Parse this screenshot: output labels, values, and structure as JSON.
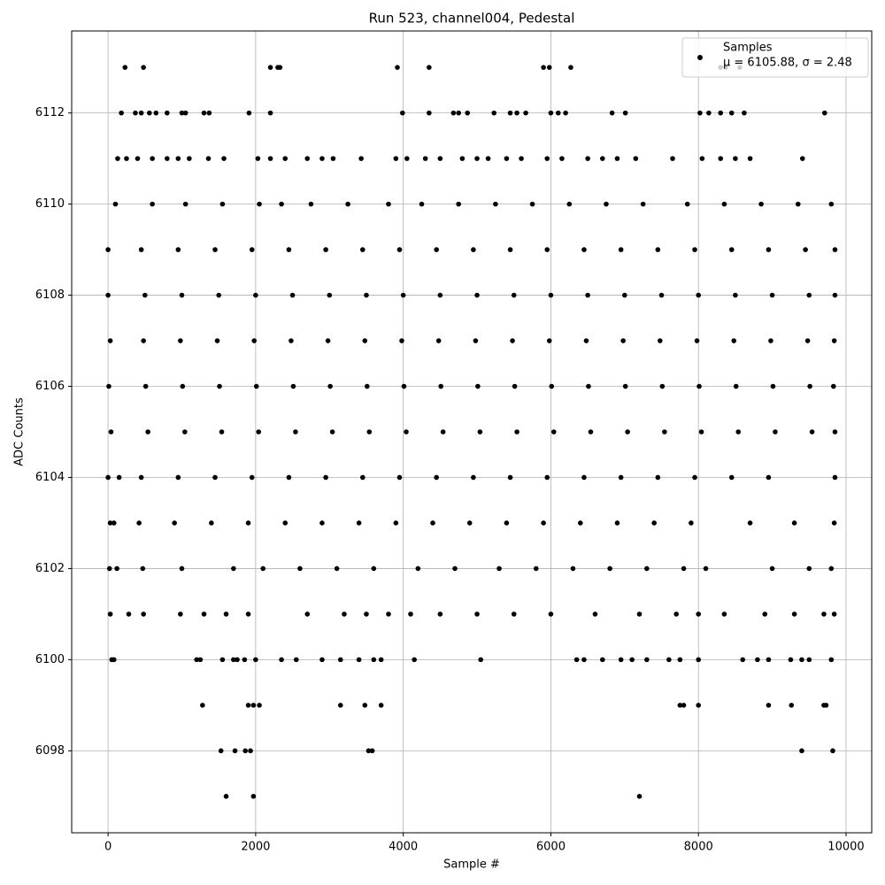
{
  "chart_data": {
    "type": "scatter",
    "title": "Run 523, channel004, Pedestal",
    "x_label": "Sample #",
    "y_label": "ADC Counts",
    "xlim": [
      -493,
      10348
    ],
    "ylim": [
      6096.2,
      6113.8
    ],
    "xticks": [
      0,
      2000,
      4000,
      6000,
      8000,
      10000
    ],
    "yticks": [
      6098,
      6100,
      6102,
      6104,
      6106,
      6108,
      6110,
      6112
    ],
    "grid": true,
    "legend_position": "upper right",
    "legend_stats": "μ = 6105.88, σ = 2.48",
    "series": [
      {
        "name": "Samples",
        "color": "#000000",
        "x": [
          230,
          480,
          2200,
          2300,
          2330,
          3920,
          4350,
          5900,
          5980,
          6270,
          8300,
          8370,
          8560,
          180,
          370,
          450,
          560,
          650,
          800,
          1000,
          1050,
          1300,
          1370,
          1910,
          2200,
          3990,
          4350,
          4680,
          4750,
          4870,
          5230,
          5450,
          5540,
          5660,
          6000,
          6100,
          6200,
          6830,
          7010,
          8020,
          8140,
          8300,
          8450,
          8620,
          9710,
          130,
          250,
          400,
          600,
          800,
          950,
          1100,
          1360,
          1570,
          2030,
          2200,
          2400,
          2700,
          2900,
          3050,
          3430,
          3900,
          4050,
          4300,
          4500,
          4800,
          5000,
          5150,
          5400,
          5600,
          5950,
          6150,
          6500,
          6700,
          6900,
          7150,
          7650,
          8050,
          8300,
          8500,
          8700,
          9410,
          100,
          600,
          1050,
          1550,
          2050,
          2350,
          2750,
          3250,
          3800,
          4250,
          4750,
          5250,
          5750,
          6250,
          6750,
          7250,
          7850,
          8350,
          8850,
          9350,
          9800,
          0,
          450,
          950,
          1450,
          1950,
          2450,
          2950,
          3450,
          3950,
          4450,
          4950,
          5450,
          5950,
          6450,
          6950,
          7450,
          7950,
          8450,
          8950,
          9450,
          9850,
          0,
          500,
          1000,
          1500,
          2000,
          2500,
          3000,
          3500,
          4000,
          4500,
          5000,
          5500,
          6000,
          6500,
          7000,
          7500,
          8000,
          8500,
          9000,
          9500,
          9850,
          30,
          480,
          980,
          1480,
          1980,
          2480,
          2980,
          3480,
          3980,
          4480,
          4980,
          5480,
          5980,
          6480,
          6980,
          7480,
          7980,
          8480,
          8980,
          9480,
          9840,
          10,
          510,
          1010,
          1510,
          2010,
          2510,
          3010,
          3510,
          4010,
          4510,
          5010,
          5510,
          6010,
          6510,
          7010,
          7510,
          8010,
          8510,
          9010,
          9510,
          9830,
          40,
          540,
          1040,
          1540,
          2040,
          2540,
          3040,
          3540,
          4040,
          4540,
          5040,
          5540,
          6040,
          6540,
          7040,
          7540,
          8040,
          8540,
          9040,
          9540,
          9850,
          0,
          150,
          450,
          950,
          1450,
          1950,
          2450,
          2950,
          3450,
          3950,
          4450,
          4950,
          5450,
          5950,
          6450,
          6950,
          7450,
          7950,
          8450,
          8950,
          9850,
          30,
          80,
          420,
          900,
          1400,
          1900,
          2400,
          2900,
          3400,
          3900,
          4400,
          4900,
          5400,
          5900,
          6400,
          6900,
          7400,
          7900,
          8700,
          9300,
          9840,
          20,
          120,
          470,
          1000,
          1700,
          2100,
          2600,
          3100,
          3600,
          4200,
          4700,
          5300,
          5800,
          6300,
          6800,
          7300,
          7800,
          8100,
          9000,
          9500,
          9800,
          30,
          280,
          480,
          980,
          1300,
          1600,
          1900,
          2700,
          3200,
          3500,
          3800,
          4100,
          4500,
          5000,
          5500,
          6000,
          6600,
          7200,
          7700,
          8000,
          8350,
          8900,
          9300,
          9700,
          9840,
          50,
          80,
          1200,
          1250,
          1550,
          1700,
          1750,
          1850,
          2000,
          2350,
          2550,
          2900,
          3150,
          3400,
          3600,
          3700,
          4150,
          5050,
          6350,
          6450,
          6700,
          6950,
          7100,
          7300,
          7600,
          7750,
          8000,
          8600,
          8800,
          8950,
          9250,
          9400,
          9500,
          9800,
          1280,
          1900,
          1970,
          2050,
          3150,
          3480,
          3700,
          7750,
          7800,
          8000,
          8950,
          9260,
          9700,
          9730,
          1530,
          1720,
          1860,
          1930,
          3530,
          3580,
          9400,
          9820,
          1600,
          1970,
          7200
        ],
        "values": [
          6113,
          6113,
          6113,
          6113,
          6113,
          6113,
          6113,
          6113,
          6113,
          6113,
          6113,
          6113,
          6113,
          6112,
          6112,
          6112,
          6112,
          6112,
          6112,
          6112,
          6112,
          6112,
          6112,
          6112,
          6112,
          6112,
          6112,
          6112,
          6112,
          6112,
          6112,
          6112,
          6112,
          6112,
          6112,
          6112,
          6112,
          6112,
          6112,
          6112,
          6112,
          6112,
          6112,
          6112,
          6112,
          6111,
          6111,
          6111,
          6111,
          6111,
          6111,
          6111,
          6111,
          6111,
          6111,
          6111,
          6111,
          6111,
          6111,
          6111,
          6111,
          6111,
          6111,
          6111,
          6111,
          6111,
          6111,
          6111,
          6111,
          6111,
          6111,
          6111,
          6111,
          6111,
          6111,
          6111,
          6111,
          6111,
          6111,
          6111,
          6111,
          6111,
          6110,
          6110,
          6110,
          6110,
          6110,
          6110,
          6110,
          6110,
          6110,
          6110,
          6110,
          6110,
          6110,
          6110,
          6110,
          6110,
          6110,
          6110,
          6110,
          6110,
          6110,
          6109,
          6109,
          6109,
          6109,
          6109,
          6109,
          6109,
          6109,
          6109,
          6109,
          6109,
          6109,
          6109,
          6109,
          6109,
          6109,
          6109,
          6109,
          6109,
          6109,
          6109,
          6108,
          6108,
          6108,
          6108,
          6108,
          6108,
          6108,
          6108,
          6108,
          6108,
          6108,
          6108,
          6108,
          6108,
          6108,
          6108,
          6108,
          6108,
          6108,
          6108,
          6108,
          6107,
          6107,
          6107,
          6107,
          6107,
          6107,
          6107,
          6107,
          6107,
          6107,
          6107,
          6107,
          6107,
          6107,
          6107,
          6107,
          6107,
          6107,
          6107,
          6107,
          6107,
          6106,
          6106,
          6106,
          6106,
          6106,
          6106,
          6106,
          6106,
          6106,
          6106,
          6106,
          6106,
          6106,
          6106,
          6106,
          6106,
          6106,
          6106,
          6106,
          6106,
          6106,
          6105,
          6105,
          6105,
          6105,
          6105,
          6105,
          6105,
          6105,
          6105,
          6105,
          6105,
          6105,
          6105,
          6105,
          6105,
          6105,
          6105,
          6105,
          6105,
          6105,
          6105,
          6104,
          6104,
          6104,
          6104,
          6104,
          6104,
          6104,
          6104,
          6104,
          6104,
          6104,
          6104,
          6104,
          6104,
          6104,
          6104,
          6104,
          6104,
          6104,
          6104,
          6104,
          6103,
          6103,
          6103,
          6103,
          6103,
          6103,
          6103,
          6103,
          6103,
          6103,
          6103,
          6103,
          6103,
          6103,
          6103,
          6103,
          6103,
          6103,
          6103,
          6103,
          6103,
          6102,
          6102,
          6102,
          6102,
          6102,
          6102,
          6102,
          6102,
          6102,
          6102,
          6102,
          6102,
          6102,
          6102,
          6102,
          6102,
          6102,
          6102,
          6102,
          6102,
          6102,
          6101,
          6101,
          6101,
          6101,
          6101,
          6101,
          6101,
          6101,
          6101,
          6101,
          6101,
          6101,
          6101,
          6101,
          6101,
          6101,
          6101,
          6101,
          6101,
          6101,
          6101,
          6101,
          6101,
          6101,
          6101,
          6100,
          6100,
          6100,
          6100,
          6100,
          6100,
          6100,
          6100,
          6100,
          6100,
          6100,
          6100,
          6100,
          6100,
          6100,
          6100,
          6100,
          6100,
          6100,
          6100,
          6100,
          6100,
          6100,
          6100,
          6100,
          6100,
          6100,
          6100,
          6100,
          6100,
          6100,
          6100,
          6100,
          6100,
          6099,
          6099,
          6099,
          6099,
          6099,
          6099,
          6099,
          6099,
          6099,
          6099,
          6099,
          6099,
          6099,
          6099,
          6098,
          6098,
          6098,
          6098,
          6098,
          6098,
          6098,
          6098,
          6097,
          6097,
          6097
        ]
      }
    ]
  }
}
